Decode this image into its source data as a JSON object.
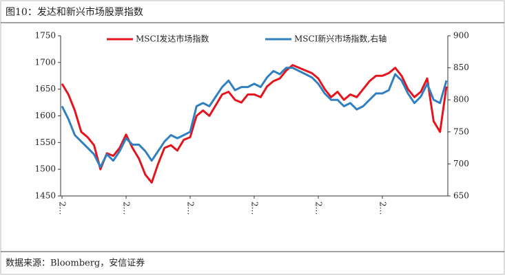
{
  "chart_data": {
    "type": "line",
    "title": "图10：发达和新兴市场股票指数",
    "source": "数据来源：Bloomberg，安信证券",
    "categories": [
      "2…",
      null,
      null,
      null,
      null,
      null,
      null,
      null,
      null,
      null,
      "2…",
      null,
      null,
      null,
      null,
      null,
      null,
      null,
      null,
      null,
      "2…",
      null,
      null,
      null,
      null,
      null,
      null,
      null,
      null,
      null,
      "2…",
      null,
      null,
      null,
      null,
      null,
      null,
      null,
      null,
      null,
      "2…",
      null,
      null,
      null,
      null,
      null,
      null,
      null,
      null,
      null,
      "2…",
      null,
      null,
      null,
      null,
      null,
      null,
      null,
      null,
      null,
      null
    ],
    "series": [
      {
        "name": "MSCI发达市场指数",
        "color": "#e5131b",
        "axis": "y",
        "values": [
          1660,
          1640,
          1610,
          1570,
          1560,
          1545,
          1500,
          1530,
          1525,
          1540,
          1565,
          1540,
          1520,
          1490,
          1475,
          1510,
          1540,
          1545,
          1535,
          1555,
          1560,
          1600,
          1610,
          1600,
          1620,
          1640,
          1645,
          1630,
          1625,
          1640,
          1640,
          1635,
          1655,
          1665,
          1670,
          1685,
          1695,
          1690,
          1685,
          1680,
          1670,
          1650,
          1635,
          1645,
          1630,
          1640,
          1635,
          1650,
          1665,
          1675,
          1675,
          1680,
          1690,
          1675,
          1650,
          1635,
          1645,
          1670,
          1590,
          1570,
          1655
        ]
      },
      {
        "name": "MSCI新兴市场指数,右轴",
        "color": "#2f7fc1",
        "axis": "y2",
        "values": [
          790,
          770,
          745,
          735,
          725,
          715,
          695,
          715,
          705,
          720,
          740,
          730,
          730,
          720,
          705,
          720,
          735,
          745,
          740,
          745,
          750,
          790,
          795,
          790,
          805,
          820,
          830,
          815,
          820,
          820,
          825,
          820,
          835,
          845,
          840,
          850,
          850,
          845,
          840,
          835,
          825,
          810,
          800,
          800,
          790,
          795,
          785,
          790,
          800,
          810,
          810,
          815,
          840,
          830,
          810,
          795,
          805,
          825,
          800,
          795,
          830
        ]
      }
    ],
    "ylim": [
      1450,
      1750
    ],
    "yticks": [
      1450,
      1500,
      1550,
      1600,
      1650,
      1700,
      1750
    ],
    "y2lim": [
      650,
      900
    ],
    "y2ticks": [
      650,
      700,
      750,
      800,
      850,
      900
    ],
    "legend": "top"
  }
}
